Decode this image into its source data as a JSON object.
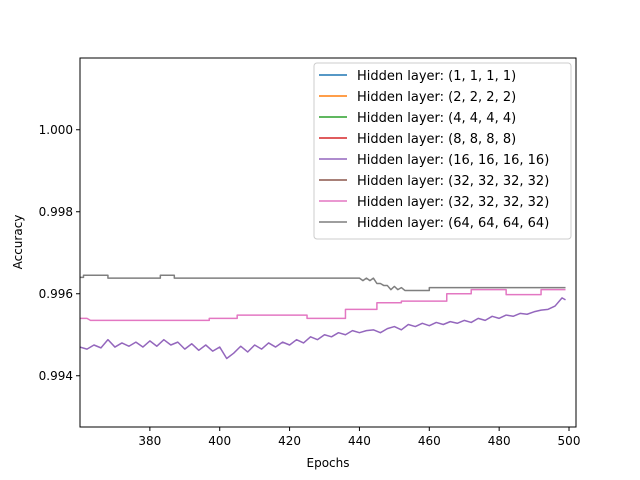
{
  "chart_data": {
    "type": "line",
    "title": "",
    "xlabel": "Epochs",
    "ylabel": "Accuracy",
    "xlim": [
      360,
      502
    ],
    "ylim": [
      0.99275,
      1.00175
    ],
    "xticks": [
      380,
      400,
      420,
      440,
      460,
      480,
      500
    ],
    "yticks": [
      0.994,
      0.996,
      0.998,
      1.0
    ],
    "xtick_labels": [
      "380",
      "400",
      "420",
      "440",
      "460",
      "480",
      "500"
    ],
    "ytick_labels": [
      "0.994",
      "0.996",
      "0.998",
      "1.000"
    ],
    "grid": false,
    "legend_position": "top-right",
    "colors": [
      "#1f77b4",
      "#ff7f0e",
      "#2ca02c",
      "#d62728",
      "#9467bd",
      "#8c564b",
      "#e377c2",
      "#7f7f7f"
    ],
    "legend": [
      "Hidden layer: (1, 1, 1, 1)",
      "Hidden layer: (2, 2, 2, 2)",
      "Hidden layer: (4, 4, 4, 4)",
      "Hidden layer: (8, 8, 8, 8)",
      "Hidden layer: (16, 16, 16, 16)",
      "Hidden layer: (32, 32, 32, 32)",
      "Hidden layer: (32, 32, 32, 32)",
      "Hidden layer: (64, 64, 64, 64)"
    ],
    "series": [
      {
        "name": "Hidden layer: (16, 16, 16, 16)",
        "color": "#9467bd",
        "x": [
          360,
          362,
          364,
          366,
          368,
          370,
          372,
          374,
          376,
          378,
          380,
          382,
          384,
          386,
          388,
          390,
          392,
          394,
          396,
          398,
          400,
          402,
          404,
          406,
          408,
          410,
          412,
          414,
          416,
          418,
          420,
          422,
          424,
          426,
          428,
          430,
          432,
          434,
          436,
          438,
          440,
          442,
          444,
          446,
          448,
          450,
          452,
          454,
          456,
          458,
          460,
          462,
          464,
          466,
          468,
          470,
          472,
          474,
          476,
          478,
          480,
          482,
          484,
          486,
          488,
          490,
          492,
          494,
          496,
          498,
          499
        ],
        "y": [
          0.9947,
          0.99465,
          0.99475,
          0.99468,
          0.99488,
          0.9947,
          0.9948,
          0.99472,
          0.99482,
          0.9947,
          0.99485,
          0.99472,
          0.99488,
          0.99475,
          0.99482,
          0.99465,
          0.99478,
          0.99462,
          0.99475,
          0.9946,
          0.9947,
          0.99442,
          0.99455,
          0.99472,
          0.99458,
          0.99475,
          0.99465,
          0.9948,
          0.9947,
          0.99482,
          0.99475,
          0.99488,
          0.9948,
          0.99495,
          0.99488,
          0.995,
          0.99495,
          0.99505,
          0.995,
          0.9951,
          0.99505,
          0.9951,
          0.99512,
          0.99505,
          0.99515,
          0.9952,
          0.99512,
          0.99525,
          0.9952,
          0.99528,
          0.99522,
          0.9953,
          0.99525,
          0.99532,
          0.99528,
          0.99535,
          0.9953,
          0.9954,
          0.99535,
          0.99545,
          0.9954,
          0.99548,
          0.99545,
          0.99552,
          0.9955,
          0.99556,
          0.9956,
          0.99562,
          0.9957,
          0.9959,
          0.99585
        ]
      },
      {
        "name": "Hidden layer: (32, 32, 32, 32)",
        "color": "#e377c2",
        "x": [
          360,
          362,
          363,
          365,
          380,
          397,
          397,
          405,
          405,
          425,
          425,
          436,
          436,
          445,
          445,
          452,
          452,
          465,
          465,
          472,
          472,
          482,
          482,
          492,
          492,
          499
        ],
        "y": [
          0.9954,
          0.9954,
          0.99535,
          0.99535,
          0.99535,
          0.99535,
          0.9954,
          0.9954,
          0.99548,
          0.99548,
          0.9954,
          0.9954,
          0.99562,
          0.99562,
          0.99578,
          0.99578,
          0.99582,
          0.99582,
          0.996,
          0.996,
          0.9961,
          0.9961,
          0.99598,
          0.99598,
          0.9961,
          0.9961
        ]
      },
      {
        "name": "Hidden layer: (64, 64, 64, 64)",
        "color": "#7f7f7f",
        "x": [
          360,
          361,
          361,
          368,
          368,
          383,
          383,
          387,
          387,
          440,
          441,
          442,
          443,
          444,
          445,
          446,
          447,
          448,
          449,
          450,
          451,
          452,
          453,
          460,
          460,
          499
        ],
        "y": [
          0.9964,
          0.9964,
          0.99645,
          0.99645,
          0.99638,
          0.99638,
          0.99645,
          0.99645,
          0.99638,
          0.99638,
          0.99632,
          0.99638,
          0.99632,
          0.99638,
          0.99625,
          0.99625,
          0.9962,
          0.9962,
          0.9961,
          0.99618,
          0.9961,
          0.99615,
          0.99608,
          0.99608,
          0.99615,
          0.99615
        ]
      }
    ]
  }
}
